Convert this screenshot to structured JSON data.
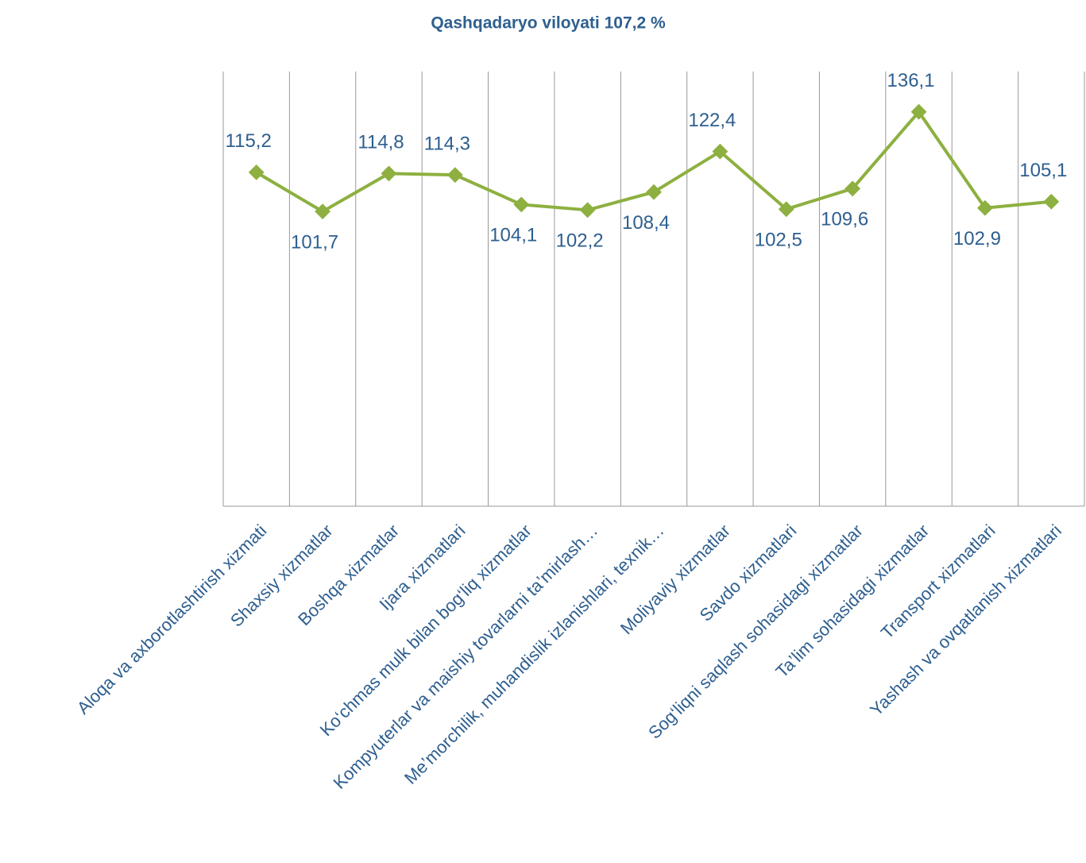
{
  "chart_data": {
    "type": "line",
    "title": "Qashqadaryo viloyati 107,2 %",
    "categories": [
      "Aloqa va axborotlashtirish xizmati",
      "Shaxsiy xizmatlar",
      "Boshqa xizmatlar",
      "Ijara xizmatlari",
      "Ko‘chmas mulk bilan bog‘liq xizmatlar",
      "Kompyuterlar va maishiy tovarlarni ta’mirlash…",
      "Me’morchilik, muhandislik izlanishlari, texnik…",
      "Moliyaviy xizmatlar",
      "Savdo xizmatlari",
      "Sog‘liqni saqlash sohasidagi xizmatlar",
      "Ta’lim sohasidagi xizmatlar",
      "Transport  xizmatlari",
      "Yashash va ovqatlanish xizmatlari"
    ],
    "series": [
      {
        "name": "Qashqadaryo viloyati",
        "color": "#8db040",
        "values": [
          115.2,
          101.7,
          114.8,
          114.3,
          104.1,
          102.2,
          108.4,
          122.4,
          102.5,
          109.6,
          136.1,
          102.9,
          105.1
        ],
        "value_labels": [
          "115,2",
          "101,7",
          "114,8",
          "114,3",
          "104,1",
          "102,2",
          "108,4",
          "122,4",
          "102,5",
          "109,6",
          "136,1",
          "102,9",
          "105,1"
        ]
      }
    ],
    "ylim": [
      0,
      150
    ],
    "grid": true
  }
}
